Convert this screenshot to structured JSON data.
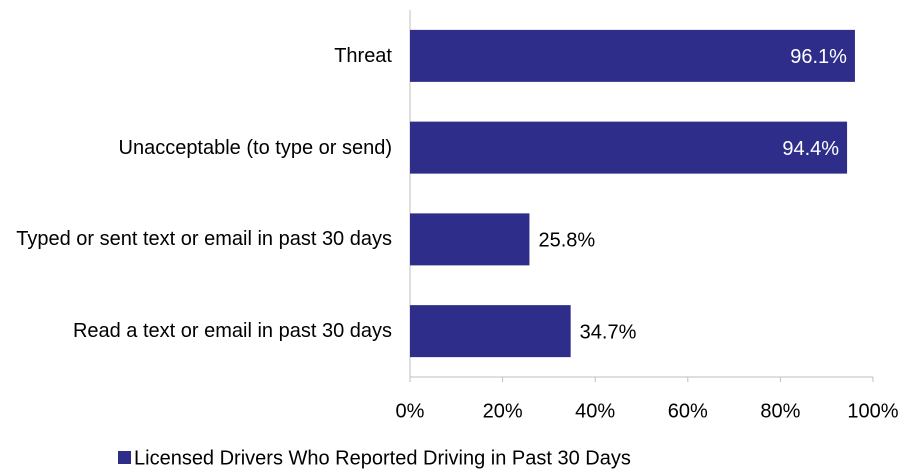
{
  "chart_data": {
    "type": "bar",
    "orientation": "horizontal",
    "categories": [
      "Threat",
      "Unacceptable (to type or send)",
      "Typed or sent text or email in past 30 days",
      "Read a text or email in past 30 days"
    ],
    "series": [
      {
        "name": "Licensed Drivers Who Reported Driving in Past 30 Days",
        "color": "#2e2e8a",
        "values": [
          96.1,
          94.4,
          25.8,
          34.7
        ],
        "value_labels": [
          "96.1%",
          "94.4%",
          "25.8%",
          "34.7%"
        ]
      }
    ],
    "xlim": [
      0,
      100
    ],
    "xticks": [
      {
        "value": 0,
        "label": "0%"
      },
      {
        "value": 20,
        "label": "20%"
      },
      {
        "value": 40,
        "label": "40%"
      },
      {
        "value": 60,
        "label": "60%"
      },
      {
        "value": 80,
        "label": "80%"
      },
      {
        "value": 100,
        "label": "100%"
      }
    ],
    "legend": "bottom"
  }
}
